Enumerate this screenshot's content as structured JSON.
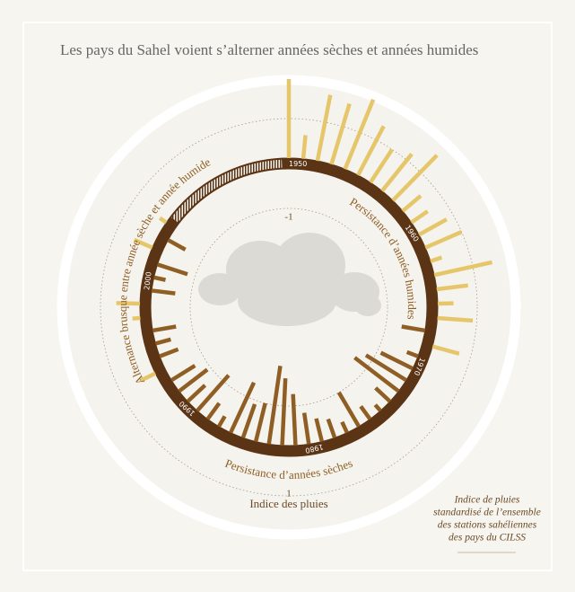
{
  "chart_data": {
    "type": "radial_bar",
    "title": "Les pays du Sahel voient s’alterner années sèches et années humides",
    "axis_label": "Indice des pluies",
    "annotations": [
      "Persistance d’années humides",
      "Persistance d’années sèches",
      "Alternance brusque entre année sèche et année humide"
    ],
    "note": [
      "Indice de pluies",
      "standardisé de l’ensemble",
      "des stations sahéliennes",
      "des pays du CILSS"
    ],
    "categories": [
      "1950",
      null,
      null,
      null,
      null,
      null,
      null,
      null,
      null,
      null,
      "1960",
      null,
      null,
      null,
      null,
      null,
      null,
      null,
      null,
      null,
      "1970",
      null,
      null,
      null,
      null,
      null,
      null,
      null,
      null,
      null,
      "1980",
      null,
      null,
      null,
      null,
      null,
      null,
      null,
      null,
      null,
      "1990",
      null,
      null,
      null,
      null,
      null,
      null,
      null,
      null,
      null,
      "2000",
      null,
      null,
      null,
      null,
      null,
      null,
      null,
      null,
      null,
      null,
      null,
      null,
      null,
      null
    ],
    "values": [
      2.0,
      0.6,
      1.7,
      1.6,
      1.9,
      1.4,
      1.0,
      1.2,
      1.6,
      0.6,
      0.5,
      0.8,
      1.0,
      0.3,
      1.5,
      0.8,
      0.4,
      0.9,
      -0.6,
      0.7,
      -0.3,
      -0.9,
      -1.2,
      -1.4,
      -0.5,
      -0.2,
      -0.4,
      -1.0,
      -0.3,
      -0.5,
      -0.6,
      -0.8,
      -1.3,
      -1.7,
      -2.0,
      -1.0,
      -0.9,
      -1.4,
      -0.3,
      -0.5,
      -1.2,
      -0.6,
      -0.9,
      -0.7,
      0.4,
      -0.5,
      -0.4,
      -0.6,
      0.2,
      0.6,
      -0.6,
      -0.3,
      -0.8,
      0.5,
      -0.5,
      0.2,
      null,
      null,
      null,
      null,
      null,
      null,
      null,
      null,
      null
    ],
    "positive_color": "#e6c66a",
    "negative_color": "#8f5e24",
    "ylim": [
      -2.5,
      2.5
    ],
    "yticks": [
      -1,
      1
    ],
    "grid": true
  }
}
